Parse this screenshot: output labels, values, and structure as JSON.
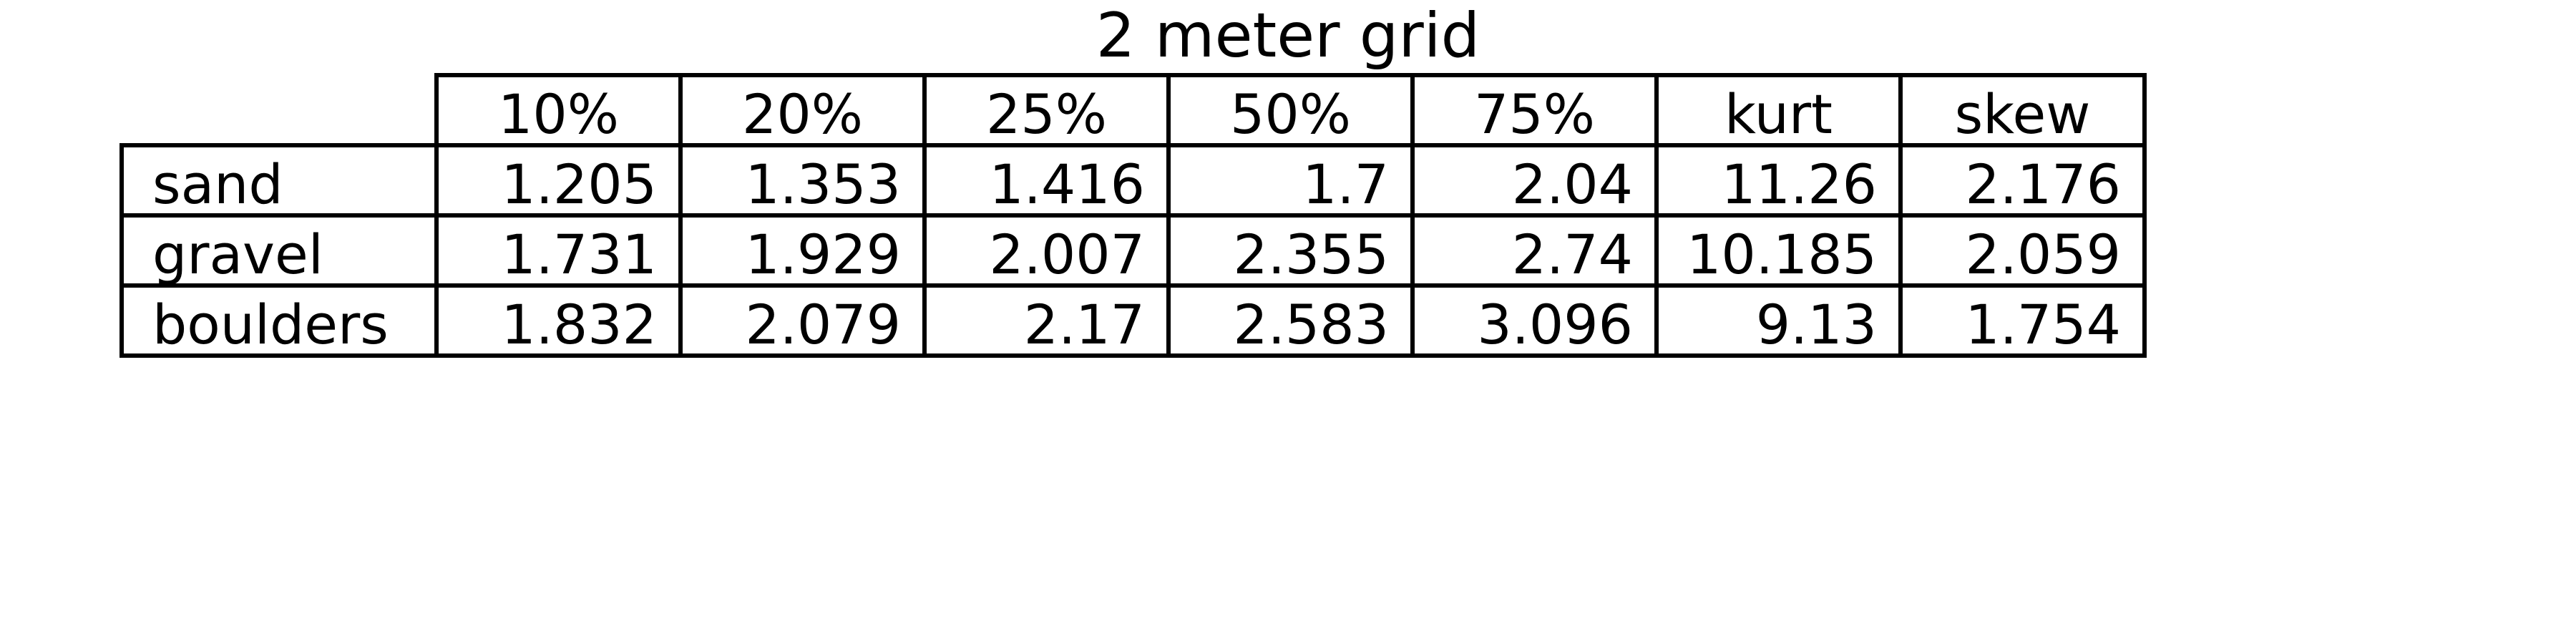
{
  "chart_data": {
    "type": "table",
    "title": "2 meter grid",
    "columns": [
      "10%",
      "20%",
      "25%",
      "50%",
      "75%",
      "kurt",
      "skew"
    ],
    "rows": [
      {
        "label": "sand",
        "values": [
          "1.205",
          "1.353",
          "1.416",
          "1.7",
          "2.04",
          "11.26",
          "2.176"
        ]
      },
      {
        "label": "gravel",
        "values": [
          "1.731",
          "1.929",
          "2.007",
          "2.355",
          "2.74",
          "10.185",
          "2.059"
        ]
      },
      {
        "label": "boulders",
        "values": [
          "1.832",
          "2.079",
          "2.17",
          "2.583",
          "3.096",
          "9.13",
          "1.754"
        ]
      }
    ]
  }
}
